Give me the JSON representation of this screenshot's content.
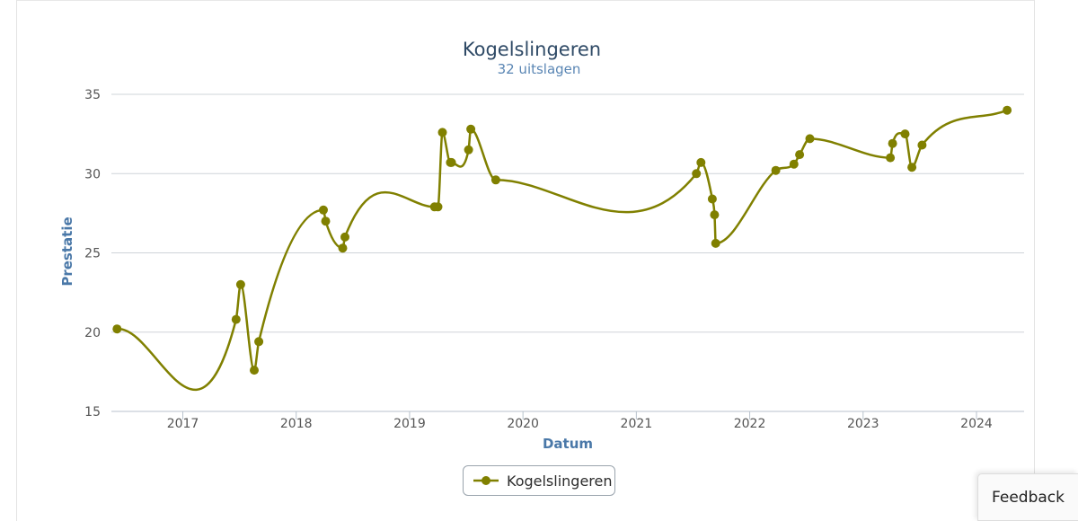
{
  "chart_data": {
    "type": "line",
    "title": "Kogelslingeren",
    "subtitle": "32 uitslagen",
    "xlabel": "Datum",
    "ylabel": "Prestatie",
    "ylim": [
      15,
      35
    ],
    "yticks": [
      15,
      20,
      25,
      30,
      35
    ],
    "xlim": [
      2016.37,
      2024.42
    ],
    "xticks": [
      "2017",
      "2018",
      "2019",
      "2020",
      "2021",
      "2022",
      "2023",
      "2024"
    ],
    "grid": true,
    "legend_position": "bottom-center",
    "series": [
      {
        "name": "Kogelslingeren",
        "color": "#808000",
        "points": [
          {
            "x": 2016.42,
            "y": 20.2
          },
          {
            "x": 2017.47,
            "y": 20.8
          },
          {
            "x": 2017.51,
            "y": 23.0
          },
          {
            "x": 2017.63,
            "y": 17.6
          },
          {
            "x": 2017.67,
            "y": 19.4
          },
          {
            "x": 2018.24,
            "y": 27.7
          },
          {
            "x": 2018.26,
            "y": 27.0
          },
          {
            "x": 2018.41,
            "y": 25.3
          },
          {
            "x": 2018.43,
            "y": 26.0
          },
          {
            "x": 2019.22,
            "y": 27.9
          },
          {
            "x": 2019.25,
            "y": 27.9
          },
          {
            "x": 2019.29,
            "y": 32.6
          },
          {
            "x": 2019.36,
            "y": 30.7
          },
          {
            "x": 2019.37,
            "y": 30.7
          },
          {
            "x": 2019.52,
            "y": 31.5
          },
          {
            "x": 2019.54,
            "y": 32.8
          },
          {
            "x": 2019.76,
            "y": 29.6
          },
          {
            "x": 2021.53,
            "y": 30.0
          },
          {
            "x": 2021.57,
            "y": 30.7
          },
          {
            "x": 2021.67,
            "y": 28.4
          },
          {
            "x": 2021.69,
            "y": 27.4
          },
          {
            "x": 2021.7,
            "y": 25.6
          },
          {
            "x": 2022.23,
            "y": 30.2
          },
          {
            "x": 2022.39,
            "y": 30.6
          },
          {
            "x": 2022.44,
            "y": 31.2
          },
          {
            "x": 2022.53,
            "y": 32.2
          },
          {
            "x": 2023.24,
            "y": 31.0
          },
          {
            "x": 2023.26,
            "y": 31.9
          },
          {
            "x": 2023.37,
            "y": 32.5
          },
          {
            "x": 2023.43,
            "y": 30.4
          },
          {
            "x": 2023.52,
            "y": 31.8
          },
          {
            "x": 2024.27,
            "y": 34.0
          }
        ]
      }
    ]
  },
  "legend": {
    "label": "Kogelslingeren"
  },
  "feedback": {
    "label": "Feedback"
  }
}
